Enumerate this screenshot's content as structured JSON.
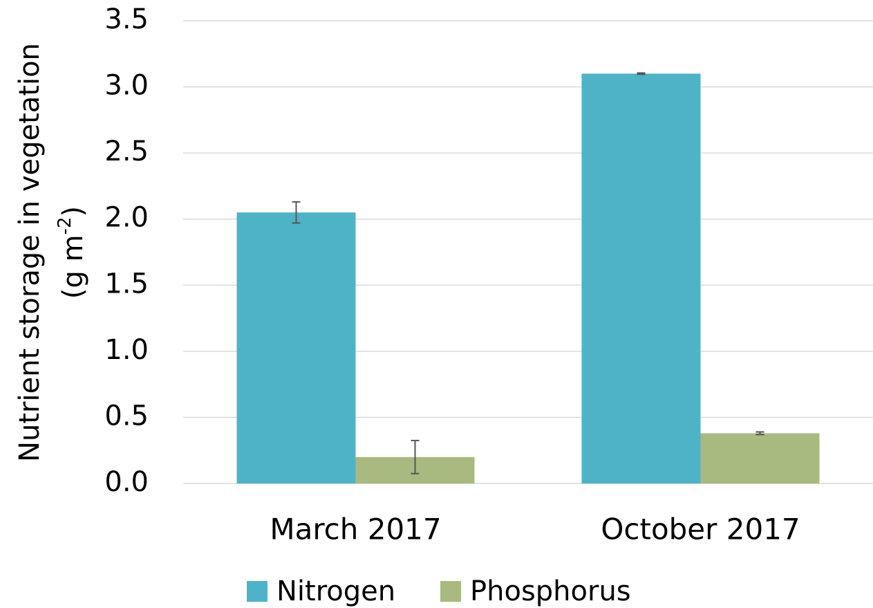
{
  "chart_data": {
    "type": "bar",
    "ylabel": {
      "text": "Nutrient storage in vegetation",
      "unit_start": "(g m",
      "unit_superscript": "-2",
      "unit_end": ")"
    },
    "categories": [
      "March 2017",
      "October 2017"
    ],
    "series": [
      {
        "name": "Nitrogen",
        "color": "#4fb3c8",
        "values": [
          2.05,
          3.1
        ],
        "errors": [
          0.08,
          0.005
        ]
      },
      {
        "name": "Phosphorus",
        "color": "#a8ba7f",
        "values": [
          0.2,
          0.38
        ],
        "errors": [
          0.125,
          0.01
        ]
      }
    ],
    "ylim": [
      0,
      3.5
    ],
    "yticks": [
      {
        "value": 0,
        "label": "0.0"
      },
      0.5,
      {
        "value": 1,
        "label": "1.0"
      },
      1.5,
      {
        "value": 2,
        "label": "2.0"
      },
      2.5,
      {
        "value": 3,
        "label": "3.0"
      },
      3.5
    ],
    "grid": true,
    "legend": "bottom"
  }
}
